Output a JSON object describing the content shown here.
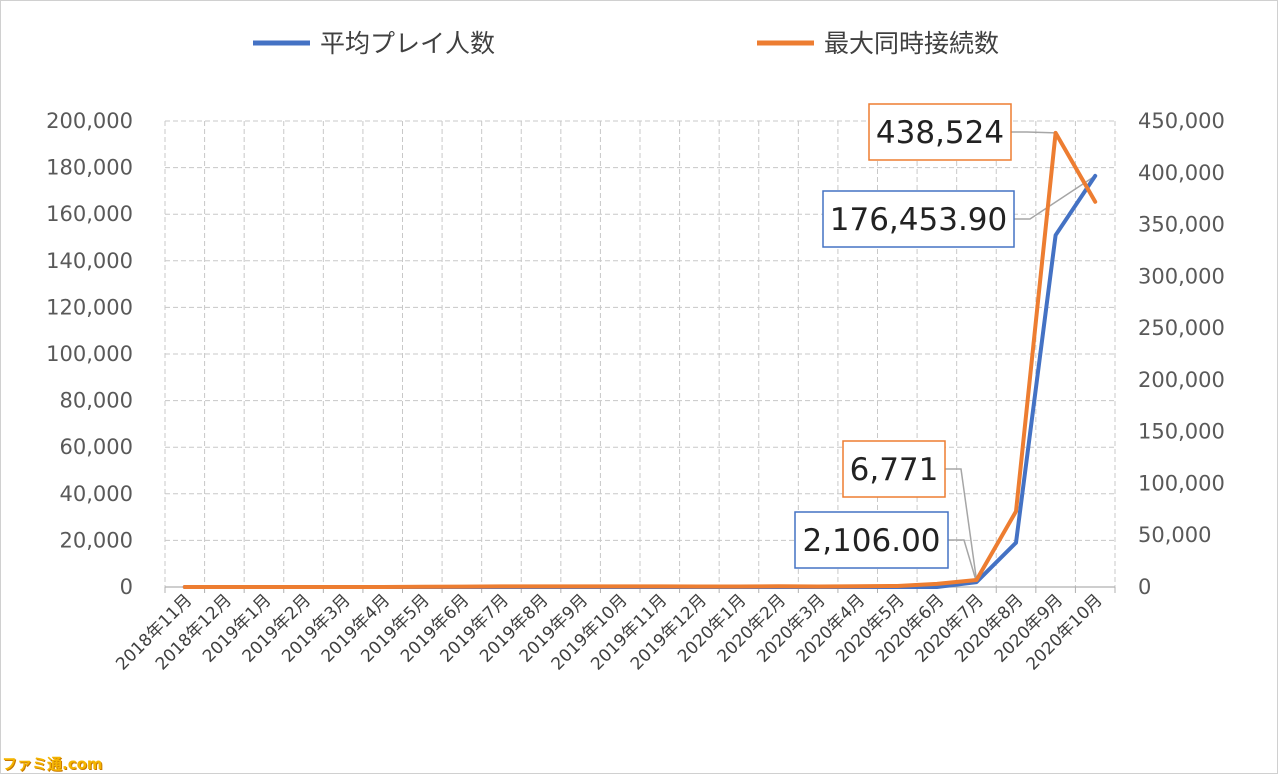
{
  "chart_data": {
    "type": "line",
    "categories": [
      "2018年11月",
      "2018年12月",
      "2019年1月",
      "2019年2月",
      "2019年3月",
      "2019年4月",
      "2019年5月",
      "2019年6月",
      "2019年7月",
      "2019年8月",
      "2019年9月",
      "2019年10月",
      "2019年11月",
      "2019年12月",
      "2020年1月",
      "2020年2月",
      "2020年3月",
      "2020年4月",
      "2020年5月",
      "2020年6月",
      "2020年7月",
      "2020年8月",
      "2020年9月",
      "2020年10月"
    ],
    "series": [
      {
        "name": "平均プレイ人数",
        "axis": "left",
        "color": "#4472C4",
        "values": [
          0,
          0,
          0,
          0,
          0,
          0,
          0,
          0,
          0,
          0,
          0,
          0,
          0,
          0,
          0,
          0,
          0,
          0,
          0,
          0,
          2106,
          19000,
          151000,
          176453.9
        ]
      },
      {
        "name": "最大同時接続数",
        "axis": "right",
        "color": "#ED7D31",
        "values": [
          0,
          0,
          0,
          0,
          0,
          0,
          200,
          400,
          600,
          600,
          600,
          600,
          600,
          500,
          500,
          700,
          500,
          800,
          1000,
          3000,
          6771,
          73000,
          438524,
          372000
        ]
      }
    ],
    "left_axis": {
      "ylim": [
        0,
        200000
      ],
      "ticks": [
        "0",
        "20,000",
        "40,000",
        "60,000",
        "80,000",
        "100,000",
        "120,000",
        "140,000",
        "160,000",
        "180,000",
        "200,000"
      ]
    },
    "right_axis": {
      "ylim": [
        0,
        450000
      ],
      "ticks": [
        "0",
        "50,000",
        "100,000",
        "150,000",
        "200,000",
        "250,000",
        "300,000",
        "350,000",
        "400,000",
        "450,000"
      ]
    },
    "grid": true,
    "legend_position": "top",
    "callouts": [
      {
        "text": "438,524",
        "series": 1,
        "index": 22,
        "border": "#ED7D31"
      },
      {
        "text": "176,453.90",
        "series": 0,
        "index": 23,
        "border": "#4472C4"
      },
      {
        "text": "6,771",
        "series": 1,
        "index": 20,
        "border": "#ED7D31"
      },
      {
        "text": "2,106.00",
        "series": 0,
        "index": 20,
        "border": "#4472C4"
      }
    ]
  },
  "watermark": "ファミ通.com"
}
